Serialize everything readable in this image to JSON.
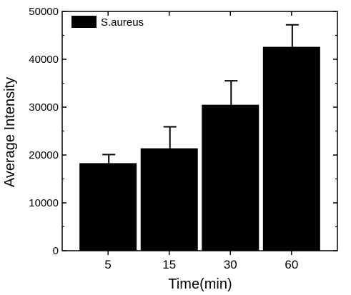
{
  "chart_data": {
    "type": "bar",
    "title": "",
    "xlabel": "Time(min)",
    "ylabel": "Average Intensity",
    "categories": [
      "5",
      "15",
      "30",
      "60"
    ],
    "series": [
      {
        "name": "S.aureus",
        "values": [
          18300,
          21400,
          30500,
          42600
        ],
        "errors": [
          1800,
          4500,
          5000,
          4600
        ],
        "color": "#000000"
      }
    ],
    "ylim": [
      0,
      50000
    ],
    "yticks": [
      0,
      10000,
      20000,
      30000,
      40000,
      50000
    ],
    "ytick_labels": [
      "0",
      "10000",
      "20000",
      "30000",
      "40000",
      "50000"
    ],
    "grid": false,
    "legend_position": "top-left"
  }
}
